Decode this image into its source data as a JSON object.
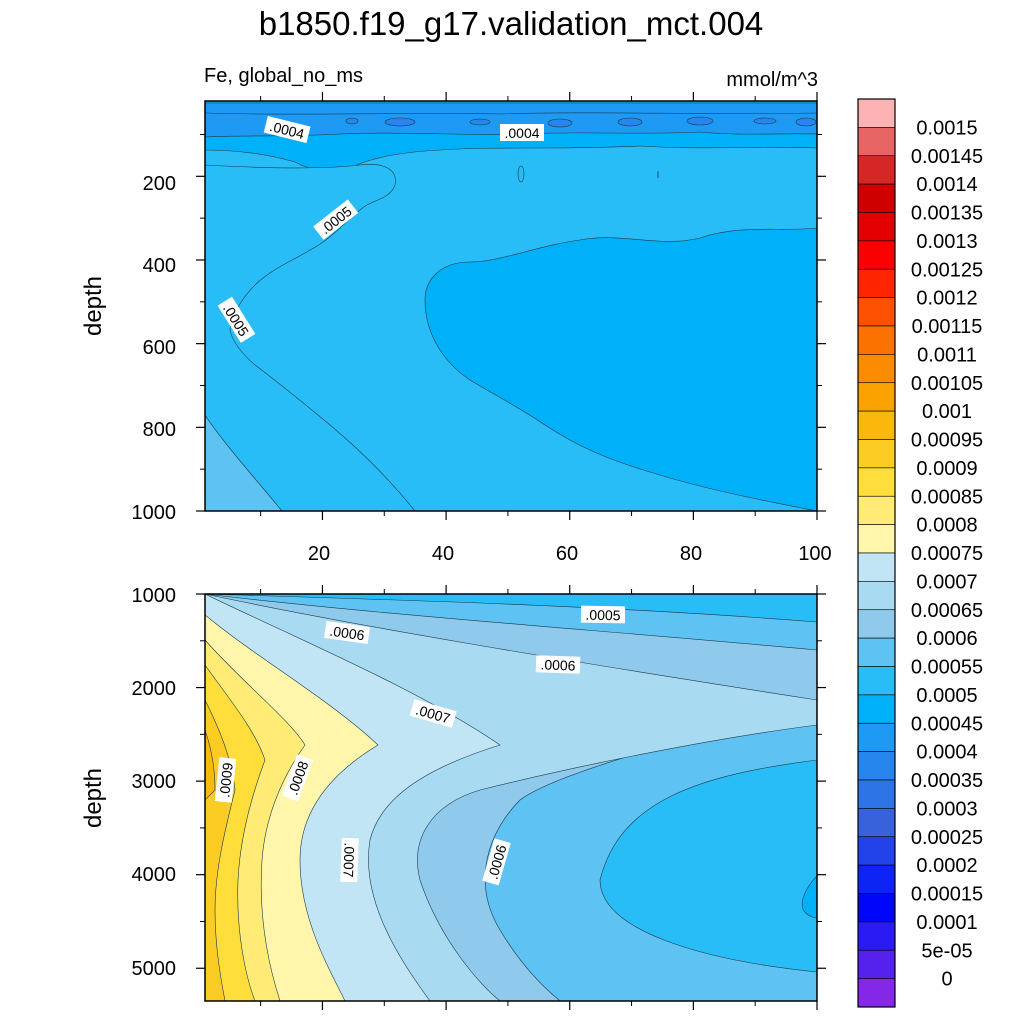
{
  "chart_data": [
    {
      "type": "contour",
      "title": "b1850.f19_g17.validation_mct.004",
      "variable_label": "Fe, global_no_ms",
      "units_label": "mmol/m^3",
      "ylabel": "depth",
      "xlabel": "",
      "panel": "upper",
      "xlim": [
        1,
        100
      ],
      "ylim": [
        1000,
        20
      ],
      "x_ticks": [
        "20",
        "40",
        "60",
        "80",
        "100"
      ],
      "y_ticks": [
        "200",
        "400",
        "600",
        "800",
        "1000"
      ],
      "contour_labels": [
        ".0004",
        ".0004",
        ".0005",
        ".0005"
      ],
      "regions": [
        {
          "level": 0.0005,
          "color": "#29bdf7",
          "description": "background 0.0005-0.00055"
        },
        {
          "level": 0.00045,
          "color": "#00b1f9",
          "description": "0.00045-0.0005 band near top and interior core"
        },
        {
          "level": 0.0004,
          "color": "#1e9af5",
          "description": "0.0004-0.00045 subsurface minimum near 40 m"
        },
        {
          "level": 0.00055,
          "color": "#5ec3f2",
          "description": "0.00055-0.0006 deep corner at low x"
        }
      ]
    },
    {
      "type": "contour",
      "panel": "lower",
      "ylabel": "depth",
      "xlim": [
        1,
        100
      ],
      "ylim": [
        5350,
        1000
      ],
      "y_ticks": [
        "1000",
        "2000",
        "3000",
        "4000",
        "5000"
      ],
      "contour_labels": [
        ".0005",
        ".0006",
        ".0006",
        ".0007",
        ".0007",
        ".0006",
        ".0008",
        ".0009"
      ],
      "regions": [
        {
          "level": 0.0009,
          "color": "#fbcc24",
          "description": "maximum near x=0, depth 2500-5350"
        },
        {
          "level": 0.00075,
          "color": "#fff6ac",
          "description": "tongue to x=28 at depth 2600"
        },
        {
          "level": 0.0007,
          "color": "#c1e5f5",
          "description": "tongue to x=47 at depth 2600"
        },
        {
          "level": 0.0006,
          "color": "#8fc9ec",
          "description": "band"
        },
        {
          "level": 0.0005,
          "color": "#29bdf7",
          "description": "core near x=100 depth 4200"
        }
      ]
    },
    {
      "type": "colorbar",
      "labels": [
        "0.0015",
        "0.00145",
        "0.0014",
        "0.00135",
        "0.0013",
        "0.00125",
        "0.0012",
        "0.00115",
        "0.0011",
        "0.00105",
        "0.001",
        "0.00095",
        "0.0009",
        "0.00085",
        "0.0008",
        "0.00075",
        "0.0007",
        "0.00065",
        "0.0006",
        "0.00055",
        "0.0005",
        "0.00045",
        "0.0004",
        "0.00035",
        "0.0003",
        "0.00025",
        "0.0002",
        "0.00015",
        "0.0001",
        "5e-05",
        "0"
      ],
      "colors": [
        "#fdb3b3",
        "#e86565",
        "#d62727",
        "#cf0000",
        "#e40000",
        "#fb0000",
        "#fe2500",
        "#fd5000",
        "#fb7200",
        "#fb8b00",
        "#faa200",
        "#fbb80c",
        "#fbcc24",
        "#ffdd3a",
        "#ffeb75",
        "#fff6ac",
        "#c1e5f5",
        "#a8daf1",
        "#8fc9ec",
        "#5ec3f2",
        "#29bdf7",
        "#00b1f9",
        "#1e9af5",
        "#2686ee",
        "#2d75e6",
        "#3762db",
        "#2143e9",
        "#0d24f5",
        "#0006fa",
        "#2a1af3",
        "#5521ec",
        "#8427e7"
      ]
    }
  ]
}
